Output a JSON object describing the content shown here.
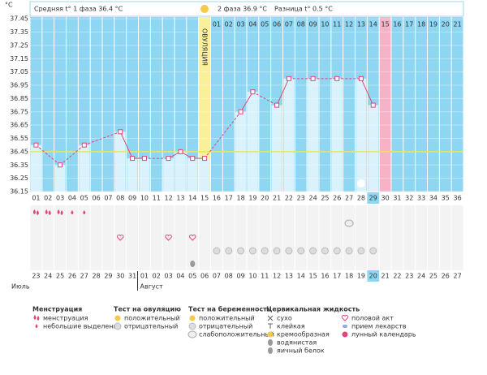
{
  "header": {
    "phase1": "Средняя t° 1 фаза 36.4 °C",
    "phase2": "2 фаза 36.9 °C",
    "diff": "Разница t° 0.5 °C"
  },
  "chart_data": {
    "type": "line",
    "y_label": "°C",
    "ovulation_label": "ОВУЛЯЦИЯ",
    "categories": [
      "01",
      "02",
      "03",
      "04",
      "05",
      "06",
      "07",
      "08",
      "09",
      "10",
      "11",
      "12",
      "13",
      "14",
      "15",
      "16",
      "17",
      "18",
      "19",
      "20",
      "21",
      "22",
      "23",
      "24",
      "25",
      "26",
      "27",
      "28",
      "29",
      "30",
      "31",
      "32",
      "33",
      "34",
      "35",
      "36"
    ],
    "values": [
      36.5,
      null,
      36.35,
      null,
      36.5,
      null,
      null,
      36.6,
      36.4,
      36.4,
      null,
      36.4,
      36.45,
      36.4,
      36.4,
      null,
      null,
      36.75,
      36.9,
      null,
      36.8,
      37.0,
      null,
      37.0,
      null,
      37.0,
      null,
      37.0,
      36.8,
      null,
      null,
      null,
      null,
      null,
      null,
      null
    ],
    "color": "#e0457b",
    "coverline": 36.45,
    "ylim": [
      36.15,
      37.5
    ],
    "yticks": [
      37.45,
      37.35,
      37.25,
      37.15,
      37.05,
      36.95,
      36.85,
      36.75,
      36.65,
      36.55,
      36.45,
      36.35,
      36.25,
      36.15
    ],
    "ovulation_category": "15",
    "marked_category": "30",
    "highlight_category": "29",
    "cycle_days": [
      "01",
      "02",
      "03",
      "04",
      "05",
      "06",
      "07",
      "08",
      "09",
      "10",
      "11",
      "12",
      "13",
      "14",
      "15",
      "16",
      "17",
      "18",
      "19",
      "20",
      "21"
    ]
  },
  "symbol_rows": [
    {
      "kind": "heavy",
      "days": [
        "01",
        "02",
        "03"
      ]
    },
    {
      "kind": "light",
      "days": [
        "04",
        "05"
      ]
    },
    {
      "kind": "preg_weak",
      "days": [
        "27"
      ]
    },
    {
      "kind": "heart",
      "days": [
        "08",
        "12",
        "14"
      ]
    },
    {
      "kind": "preg_neg",
      "days": [
        "16",
        "17",
        "18",
        "19",
        "20",
        "21",
        "22",
        "23",
        "24",
        "25",
        "26",
        "27",
        "28",
        "29"
      ]
    },
    {
      "kind": "egg_white",
      "days": [
        "14"
      ]
    }
  ],
  "dates": [
    {
      "text": "23"
    },
    {
      "text": "24"
    },
    {
      "text": "25"
    },
    {
      "text": "26"
    },
    {
      "text": "27"
    },
    {
      "text": "28",
      "weekend": true
    },
    {
      "text": "29",
      "weekend": true
    },
    {
      "text": "30"
    },
    {
      "text": "31"
    },
    {
      "text": "01"
    },
    {
      "text": "02"
    },
    {
      "text": "03"
    },
    {
      "text": "04",
      "weekend": true
    },
    {
      "text": "05",
      "weekend": true
    },
    {
      "text": "06"
    },
    {
      "text": "07"
    },
    {
      "text": "08"
    },
    {
      "text": "09"
    },
    {
      "text": "10"
    },
    {
      "text": "11",
      "weekend": true
    },
    {
      "text": "12",
      "weekend": true
    },
    {
      "text": "13"
    },
    {
      "text": "14"
    },
    {
      "text": "15"
    },
    {
      "text": "16"
    },
    {
      "text": "17"
    },
    {
      "text": "18",
      "weekend": true
    },
    {
      "text": "19",
      "weekend": true
    },
    {
      "text": "20",
      "today": true
    },
    {
      "text": "21"
    },
    {
      "text": "22"
    },
    {
      "text": "23"
    },
    {
      "text": "24"
    },
    {
      "text": "25",
      "weekend": true
    },
    {
      "text": "26",
      "weekend": true
    },
    {
      "text": "27"
    }
  ],
  "months": [
    {
      "label": "Июль",
      "start": 0
    },
    {
      "label": "Август",
      "start": 9
    }
  ],
  "legend": [
    {
      "title": "Менструация",
      "items": [
        {
          "icon": "heavy",
          "text": "менструация"
        },
        {
          "icon": "light",
          "text": "небольшие выделения"
        }
      ]
    },
    {
      "title": "Тест на овуляцию",
      "items": [
        {
          "icon": "sun",
          "text": "положительный"
        },
        {
          "icon": "neg",
          "text": "отрицательный"
        }
      ]
    },
    {
      "title": "Тест на беременность",
      "items": [
        {
          "icon": "sun",
          "text": "положительный"
        },
        {
          "icon": "preg_neg",
          "text": "отрицательный"
        },
        {
          "icon": "preg_weak",
          "text": "слабоположительный"
        }
      ]
    },
    {
      "title": "Цервикальная жидкость",
      "items": [
        {
          "icon": "x",
          "text": "сухо"
        },
        {
          "icon": "t",
          "text": "клейкая"
        },
        {
          "icon": "sun",
          "text": "кремообразная"
        },
        {
          "icon": "egg_white",
          "text": "водянистая"
        },
        {
          "icon": "egg_white",
          "text": "яичный белок"
        }
      ]
    },
    {
      "title": null,
      "items": [
        {
          "icon": "heart",
          "text": "половой акт"
        },
        {
          "icon": "pill",
          "text": "прием лекарств"
        },
        {
          "icon": "moon",
          "text": "лунный календарь"
        }
      ]
    }
  ]
}
